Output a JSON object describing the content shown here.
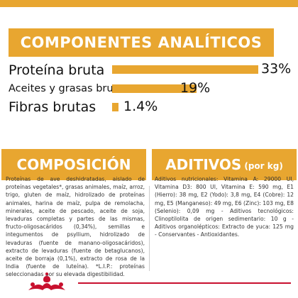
{
  "header": {
    "title": "COMPONENTES ANALÍTICOS"
  },
  "nutrients": [
    {
      "label": "Proteína bruta",
      "value": "33%",
      "percent": 33
    },
    {
      "label": "Aceites y grasas brutos",
      "value": "19%",
      "percent": 19
    },
    {
      "label": "Fibras brutas",
      "value": "1.4%",
      "percent": 1.4
    }
  ],
  "composition": {
    "title": "COMPOSICIÓN",
    "text": "Proteínas de ave deshidratadas, aislado de proteínas vegetales*, grasas animales, maíz, arroz, trigo, gluten de maíz, hidrolizado de proteínas animales, harina de maíz, pulpa de remolacha, minerales, aceite de pescado, aceite de soja, levaduras completas y partes de las mismas, fructo-oligosacáridos (0,34%), semillas e integumentos de psyllium, hidrolizado de levaduras (fuente de manano-oligosacáridos), extracto de levaduras (fuente de betaglucanos), aceite de borraja (0,1%), extracto de rosa de la India (fuente de luteína). *L.I.P.: proteínas seleccionadas por su elevada digestibilidad."
  },
  "additives": {
    "title": "ADITIVOS",
    "title_suffix": "(por kg)",
    "text": "Aditivos nutricionales: Vitamina A: 29000 UI, Vitamina D3: 800 UI, Vitamina E: 590 mg, E1 (Hierro): 38 mg, E2 (Yodo): 3,8 mg, E4 (Cobre): 12 mg, E5 (Manganeso): 49 mg, E6 (Zinc): 103 mg, E8 (Selenio): 0,09 mg - Aditivos tecnológicos: Clinoptilolita de origen sedimentario: 10 g - Aditivos organolépticos: Extracto de yuca: 125 mg - Conservantes - Antioxidantes."
  },
  "brand": {
    "logo": "royal-canin-crown-logo"
  },
  "colors": {
    "accent": "#e8a630",
    "brand_red": "#c8102e"
  }
}
